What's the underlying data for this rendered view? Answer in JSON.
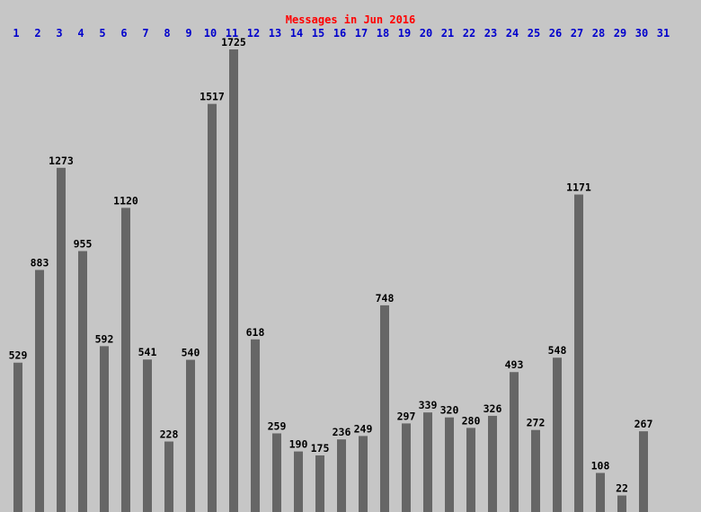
{
  "chart_data": {
    "type": "bar",
    "title": "Messages in Jun 2016",
    "categories": [
      "1",
      "2",
      "3",
      "4",
      "5",
      "6",
      "7",
      "8",
      "9",
      "10",
      "11",
      "12",
      "13",
      "14",
      "15",
      "16",
      "17",
      "18",
      "19",
      "20",
      "21",
      "22",
      "23",
      "24",
      "25",
      "26",
      "27",
      "28",
      "29",
      "30",
      "31"
    ],
    "values": [
      529,
      883,
      1273,
      955,
      592,
      1120,
      541,
      228,
      540,
      1517,
      1725,
      618,
      259,
      190,
      175,
      236,
      249,
      748,
      297,
      339,
      320,
      280,
      326,
      493,
      272,
      548,
      1171,
      108,
      22,
      267,
      null
    ],
    "color": "#666666"
  }
}
